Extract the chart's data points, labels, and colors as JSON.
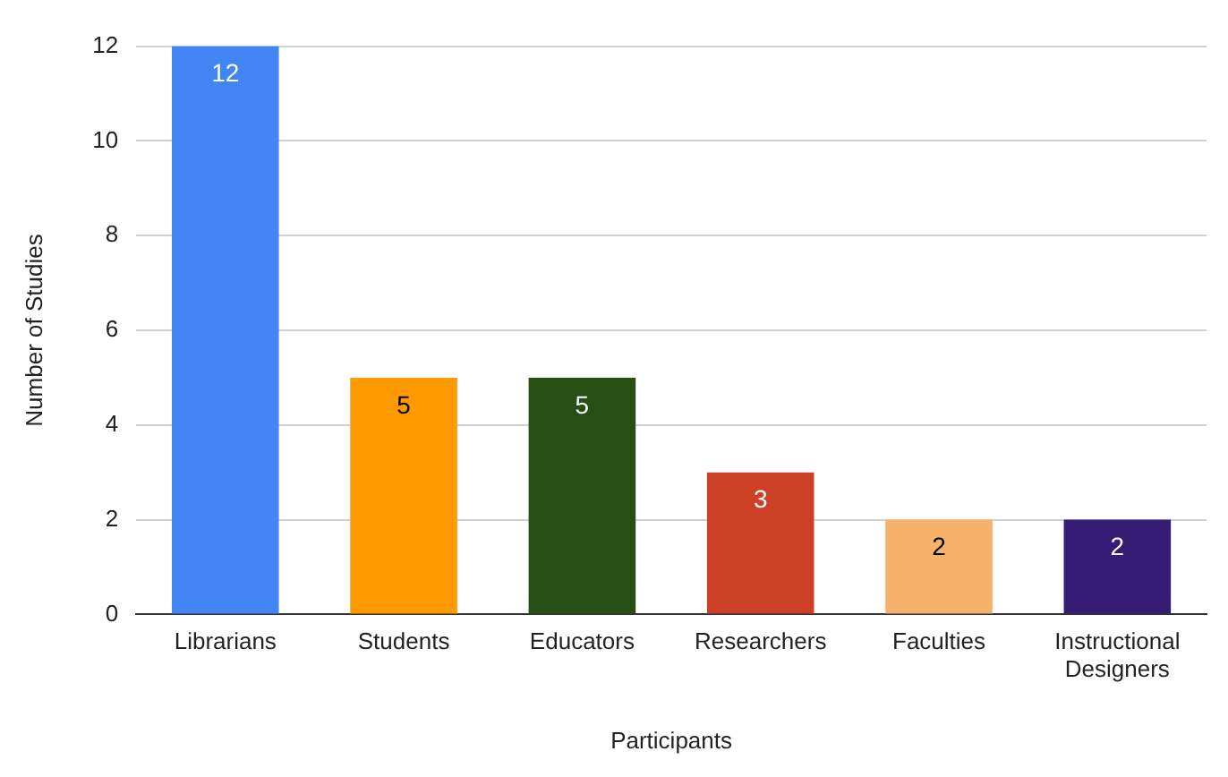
{
  "chart_data": {
    "type": "bar",
    "xlabel": "Participants",
    "ylabel": "Number of Studies",
    "categories": [
      "Librarians",
      "Students",
      "Educators",
      "Researchers",
      "Faculties",
      "Instructional Designers"
    ],
    "values": [
      12,
      5,
      5,
      3,
      2,
      2
    ],
    "colors": [
      "#4285f4",
      "#ff9900",
      "#274e13",
      "#cc4125",
      "#f6b26b",
      "#351c75"
    ],
    "ylim": [
      0,
      12
    ],
    "yticks": [
      0,
      2,
      4,
      6,
      8,
      10,
      12
    ],
    "grid": "y",
    "data_labels": true,
    "legend": false
  }
}
